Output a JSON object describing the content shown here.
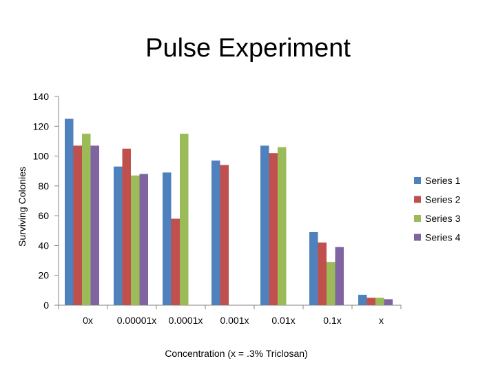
{
  "chart_data": {
    "type": "bar",
    "title": "Pulse Experiment",
    "xlabel": "Concentration (x = .3% Triclosan)",
    "ylabel": "Surviving Colonies",
    "ylim": [
      0,
      140
    ],
    "yticks": [
      0,
      20,
      40,
      60,
      80,
      100,
      120,
      140
    ],
    "grid": false,
    "legend_position": "right",
    "categories": [
      "0x",
      "0.00001x",
      "0.0001x",
      "0.001x",
      "0.01x",
      "0.1x",
      "x"
    ],
    "series": [
      {
        "name": "Series 1",
        "color": "#4F81BD",
        "values": [
          125,
          93,
          89,
          97,
          107,
          49,
          7
        ]
      },
      {
        "name": "Series 2",
        "color": "#C0504D",
        "values": [
          107,
          105,
          58,
          94,
          102,
          42,
          5
        ]
      },
      {
        "name": "Series 3",
        "color": "#9BBB59",
        "values": [
          115,
          87,
          115,
          null,
          106,
          29,
          5
        ]
      },
      {
        "name": "Series 4",
        "color": "#8064A2",
        "values": [
          107,
          88,
          null,
          null,
          null,
          39,
          4
        ]
      }
    ]
  }
}
